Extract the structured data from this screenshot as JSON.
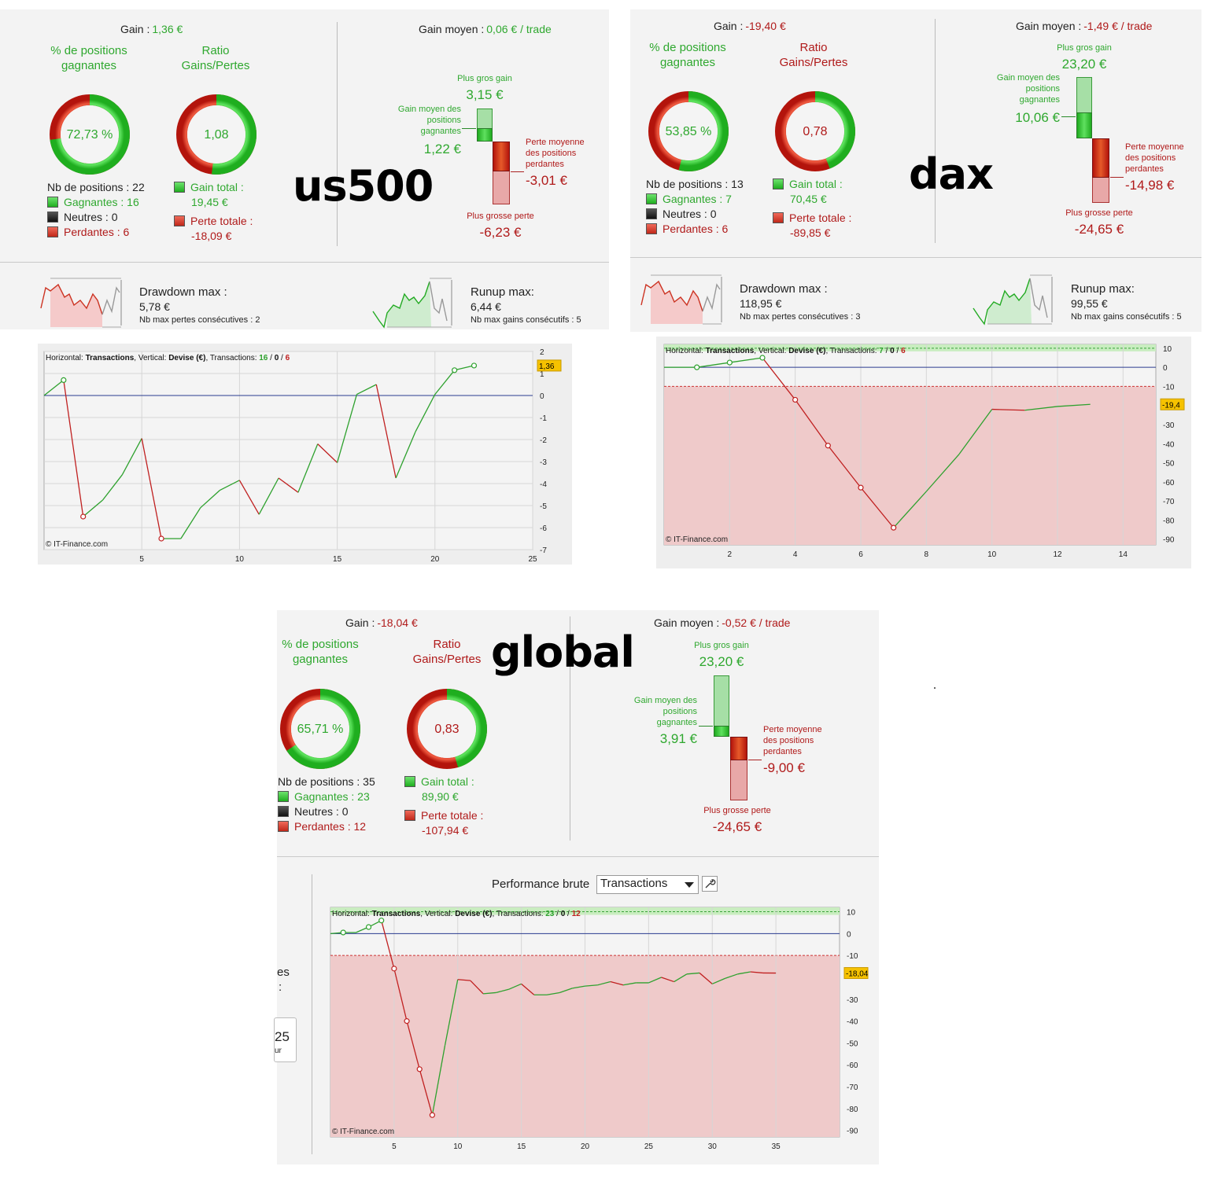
{
  "panels": [
    {
      "tag": "us500",
      "gain_label": "Gain :",
      "gain_value": "1,36 €",
      "gain_positive": true,
      "avg_label": "Gain moyen :",
      "avg_value": "0,06 € / trade",
      "avg_positive": true,
      "pct_title": "% de positions gagnantes",
      "pct_value": "72,73 %",
      "pct_win": 0.7273,
      "ratio_title": "Ratio Gains/Pertes",
      "ratio_value": "1,08",
      "ratio_win": 0.5182,
      "nb_positions": "Nb de positions : 22",
      "winners": "Gagnantes : 16",
      "neutral": "Neutres : 0",
      "losers": "Perdantes : 6",
      "gain_total_label": "Gain total :",
      "gain_total_value": "19,45 €",
      "loss_total_label": "Perte totale :",
      "loss_total_value": "-18,09 €",
      "best_label": "Plus gros gain",
      "best_value": "3,15 €",
      "avg_win_label": "Gain moyen des positions gagnantes",
      "avg_win_value": "1,22 €",
      "avg_loss_label": "Perte moyenne des positions perdantes",
      "avg_loss_value": "-3,01 €",
      "worst_label": "Plus grosse perte",
      "worst_value": "-6,23 €",
      "drawdown_label": "Drawdown max :",
      "drawdown_value": "5,78 €",
      "drawdown_sub": "Nb max pertes consécutives : 2",
      "runup_label": "Runup max:",
      "runup_value": "6,44 €",
      "runup_sub": "Nb max gains consécutifs : 5"
    },
    {
      "tag": "dax",
      "gain_label": "Gain :",
      "gain_value": "-19,40 €",
      "gain_positive": false,
      "avg_label": "Gain moyen :",
      "avg_value": "-1,49 € / trade",
      "avg_positive": false,
      "pct_title": "% de positions gagnantes",
      "pct_value": "53,85 %",
      "pct_win": 0.5385,
      "ratio_title": "Ratio Gains/Pertes",
      "ratio_value": "0,78",
      "ratio_win": 0.4395,
      "nb_positions": "Nb de positions : 13",
      "winners": "Gagnantes : 7",
      "neutral": "Neutres : 0",
      "losers": "Perdantes : 6",
      "gain_total_label": "Gain total :",
      "gain_total_value": "70,45 €",
      "loss_total_label": "Perte totale :",
      "loss_total_value": "-89,85 €",
      "best_label": "Plus gros gain",
      "best_value": "23,20 €",
      "avg_win_label": "Gain moyen des positions gagnantes",
      "avg_win_value": "10,06 €",
      "avg_loss_label": "Perte moyenne des positions perdantes",
      "avg_loss_value": "-14,98 €",
      "worst_label": "Plus grosse perte",
      "worst_value": "-24,65 €",
      "drawdown_label": "Drawdown max :",
      "drawdown_value": "118,95 €",
      "drawdown_sub": "Nb max pertes consécutives : 3",
      "runup_label": "Runup max:",
      "runup_value": "99,55 €",
      "runup_sub": "Nb max gains consécutifs : 5"
    },
    {
      "tag": "global",
      "gain_label": "Gain :",
      "gain_value": "-18,04 €",
      "gain_positive": false,
      "avg_label": "Gain moyen :",
      "avg_value": "-0,52 € / trade",
      "avg_positive": false,
      "pct_title": "% de positions gagnantes",
      "pct_value": "65,71 %",
      "pct_win": 0.6571,
      "ratio_title": "Ratio Gains/Pertes",
      "ratio_value": "0,83",
      "ratio_win": 0.4544,
      "nb_positions": "Nb de positions : 35",
      "winners": "Gagnantes : 23",
      "neutral": "Neutres : 0",
      "losers": "Perdantes : 12",
      "gain_total_label": "Gain total :",
      "gain_total_value": "89,90 €",
      "loss_total_label": "Perte totale :",
      "loss_total_value": "-107,94 €",
      "best_label": "Plus gros gain",
      "best_value": "23,20 €",
      "avg_win_label": "Gain moyen des positions gagnantes",
      "avg_win_value": "3,91 €",
      "avg_loss_label": "Perte moyenne des positions perdantes",
      "avg_loss_value": "-9,00 €",
      "worst_label": "Plus grosse perte",
      "worst_value": "-24,65 €"
    }
  ],
  "global_controls": {
    "performance_label": "Performance brute",
    "select_value": "Transactions",
    "partial_text_1": "es",
    "partial_text_2": ":",
    "partial_box_value": "25",
    "partial_box_sub": "ur"
  },
  "chart_data": [
    {
      "type": "line",
      "name": "us500",
      "header_horizontal_label": "Horizontal:",
      "header_horizontal_value": "Transactions",
      "header_vertical_label": "Vertical:",
      "header_vertical_value": "Devise (€)",
      "header_trans_label": "Transactions:",
      "header_wins": "16",
      "header_neutral": "0",
      "header_losses": "6",
      "watermark": "© IT-Finance.com",
      "current_value_label": "1,36",
      "x": [
        0,
        1,
        2,
        3,
        4,
        5,
        6,
        7,
        8,
        9,
        10,
        11,
        12,
        13,
        14,
        15,
        16,
        17,
        18,
        19,
        20,
        21,
        22
      ],
      "y": [
        0,
        0.7,
        -5.5,
        -4.75,
        -3.6,
        -1.95,
        -6.5,
        -6.5,
        -5.1,
        -4.3,
        -3.85,
        -5.4,
        -3.75,
        -4.4,
        -2.2,
        -3.05,
        0.05,
        0.5,
        -3.75,
        -1.65,
        0.05,
        1.15,
        1.36
      ],
      "markers_x": [
        1,
        2,
        6,
        21,
        22
      ],
      "xlim": [
        0,
        25
      ],
      "ylim": [
        -7,
        2
      ],
      "xticks": [
        5,
        10,
        15,
        20,
        25
      ],
      "yticks": [
        2,
        1,
        0,
        -1,
        -2,
        -3,
        -4,
        -5,
        -6,
        -7
      ]
    },
    {
      "type": "line",
      "name": "dax",
      "header_horizontal_label": "Horizontal:",
      "header_horizontal_value": "Transactions",
      "header_vertical_label": "Vertical:",
      "header_vertical_value": "Devise (€)",
      "header_trans_label": "Transactions:",
      "header_wins": "7",
      "header_neutral": "0",
      "header_losses": "6",
      "watermark": "© IT-Finance.com",
      "current_value_label": "-19,4",
      "x": [
        0,
        1,
        2,
        3,
        4,
        5,
        6,
        7,
        8,
        9,
        10,
        11,
        12,
        13
      ],
      "y": [
        0,
        0,
        2.5,
        5,
        -17,
        -41,
        -63,
        -84,
        -65,
        -45.5,
        -22,
        -22.5,
        -20.5,
        -19.4
      ],
      "markers_x": [
        1,
        2,
        3,
        4,
        5,
        6,
        7
      ],
      "xlim": [
        0,
        15
      ],
      "ylim": [
        -93,
        12
      ],
      "xticks": [
        2,
        4,
        6,
        8,
        10,
        12,
        14
      ],
      "yticks": [
        10,
        0,
        -10,
        -30,
        -40,
        -50,
        -60,
        -70,
        -80,
        -90
      ],
      "bands": [
        10,
        -10
      ]
    },
    {
      "type": "line",
      "name": "global",
      "header_horizontal_label": "Horizontal:",
      "header_horizontal_value": "Transactions",
      "header_vertical_label": "Vertical:",
      "header_vertical_value": "Devise (€)",
      "header_trans_label": "Transactions:",
      "header_wins": "23",
      "header_neutral": "0",
      "header_losses": "12",
      "watermark": "© IT-Finance.com",
      "current_value_label": "-18,04",
      "x": [
        0,
        1,
        2,
        3,
        4,
        5,
        6,
        7,
        8,
        9,
        10,
        11,
        12,
        13,
        14,
        15,
        16,
        17,
        18,
        19,
        20,
        21,
        22,
        23,
        24,
        25,
        26,
        27,
        28,
        29,
        30,
        31,
        32,
        33,
        34,
        35
      ],
      "y": [
        0,
        0.5,
        0.5,
        3,
        6,
        -16,
        -40,
        -62,
        -83,
        -51,
        -21,
        -21.5,
        -27.5,
        -27,
        -25.5,
        -23,
        -28,
        -28,
        -27,
        -25,
        -24,
        -23.5,
        -22,
        -23.5,
        -22.5,
        -22.5,
        -20,
        -22,
        -18.5,
        -18,
        -23,
        -20.5,
        -18.5,
        -17.5,
        -18,
        -18.04
      ],
      "markers_x": [
        1,
        3,
        4,
        5,
        6,
        7,
        8
      ],
      "xlim": [
        0,
        40
      ],
      "ylim": [
        -93,
        12
      ],
      "xticks": [
        5,
        10,
        15,
        20,
        25,
        30,
        35
      ],
      "yticks": [
        10,
        0,
        -10,
        -30,
        -40,
        -50,
        -60,
        -70,
        -80,
        -90
      ],
      "bands": [
        10,
        -10
      ]
    }
  ]
}
